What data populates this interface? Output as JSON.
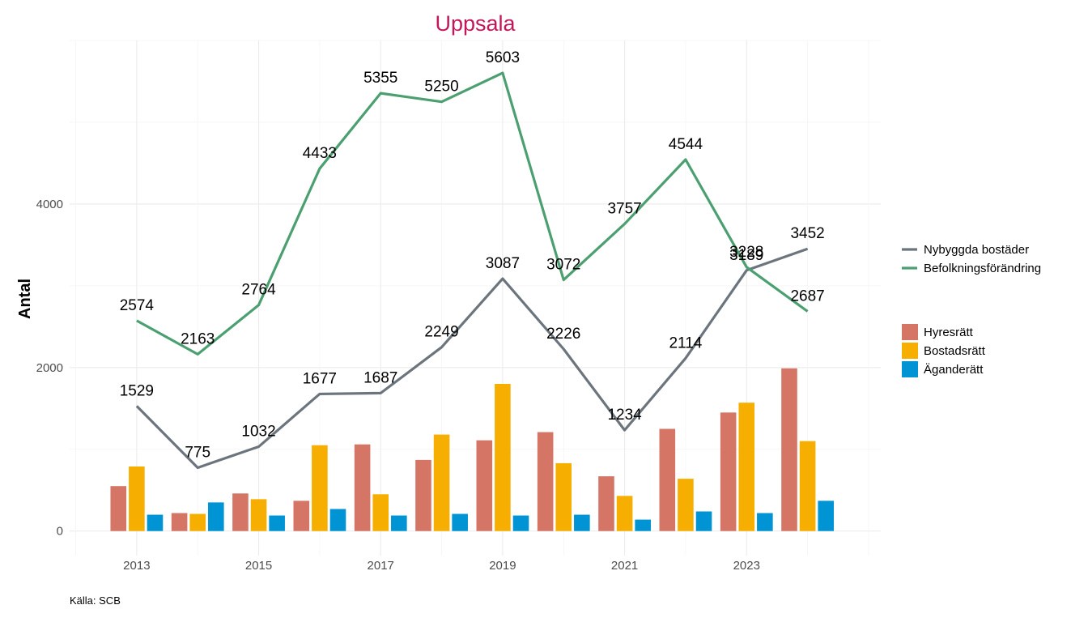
{
  "chart_data": {
    "type": "bar+line",
    "title": "Uppsala",
    "ylabel": "Antal",
    "xlabel": "",
    "caption": "Källa: SCB",
    "ylim": [
      -300,
      6000
    ],
    "xlim": [
      2011.9,
      2025.2
    ],
    "x_ticks": [
      2013,
      2015,
      2017,
      2019,
      2021,
      2023
    ],
    "y_ticks": [
      0,
      2000,
      4000
    ],
    "years": [
      2013,
      2014,
      2015,
      2016,
      2017,
      2018,
      2019,
      2020,
      2021,
      2022,
      2023,
      2024
    ],
    "lines": [
      {
        "name": "Nybyggda bostäder",
        "color": "#6c757d",
        "values": [
          1529,
          775,
          1032,
          1677,
          1687,
          2249,
          3087,
          2226,
          1234,
          2114,
          3189,
          3452
        ]
      },
      {
        "name": "Befolkningsförändring",
        "color": "#4c9f70",
        "values": [
          2574,
          2163,
          2764,
          4433,
          5355,
          5250,
          5603,
          3072,
          3757,
          4544,
          3228,
          2687
        ]
      }
    ],
    "bars": [
      {
        "name": "Hyresrätt",
        "color": "#d47566",
        "values": [
          550,
          220,
          460,
          370,
          1060,
          870,
          1110,
          1210,
          670,
          1250,
          1450,
          1990
        ]
      },
      {
        "name": "Bostadsrätt",
        "color": "#f6ae00",
        "values": [
          790,
          210,
          390,
          1050,
          450,
          1180,
          1800,
          830,
          430,
          640,
          1570,
          1100
        ]
      },
      {
        "name": "Äganderätt",
        "color": "#0094d4",
        "values": [
          200,
          350,
          190,
          270,
          190,
          210,
          190,
          200,
          140,
          240,
          220,
          370
        ]
      }
    ],
    "title_color": "#c2185b",
    "legend_position": "right"
  }
}
